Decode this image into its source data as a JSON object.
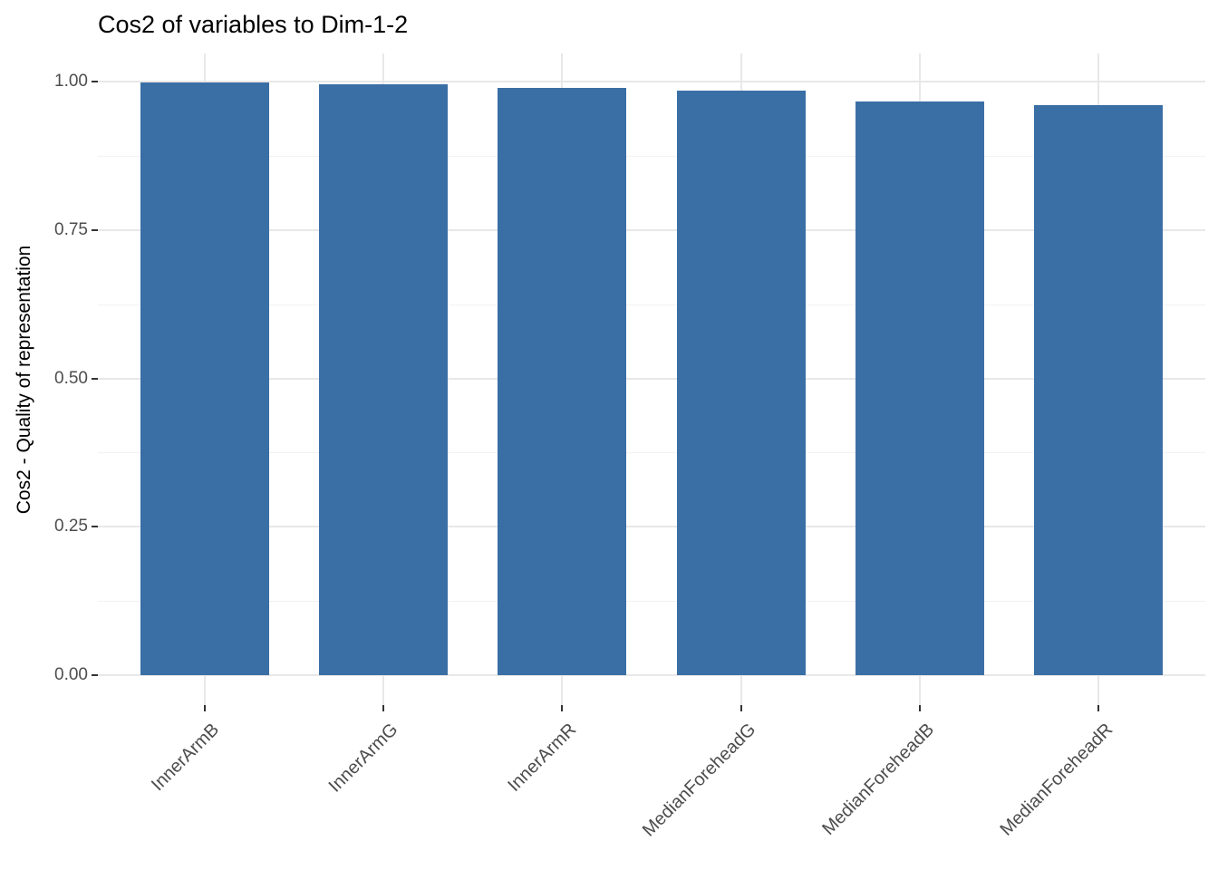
{
  "title": "Cos2 of variables to Dim-1-2",
  "chart_data": {
    "type": "bar",
    "title": "Cos2 of variables to Dim-1-2",
    "xlabel": "",
    "ylabel": "Cos2 - Quality of representation",
    "categories": [
      "InnerArmB",
      "InnerArmG",
      "InnerArmR",
      "MedianForeheadG",
      "MedianForeheadB",
      "MedianForeheadR"
    ],
    "values": [
      0.998,
      0.995,
      0.989,
      0.985,
      0.966,
      0.96
    ],
    "ylim": [
      0,
      1.0
    ],
    "yticks": [
      0.0,
      0.25,
      0.5,
      0.75,
      1.0
    ],
    "ytick_labels": [
      "0.00",
      "0.25",
      "0.50",
      "0.75",
      "1.00"
    ],
    "yminor_ticks": [
      0.125,
      0.375,
      0.625,
      0.875
    ],
    "grid": "major and minor horizontal, major vertical at category centers",
    "legend": "none",
    "bar_orientation": "vertical",
    "x_label_angle_deg": 45,
    "colors": {
      "bar_fill": "#3A6FA6",
      "grid_major": "#E8E8E8",
      "grid_minor": "#F2F2F2",
      "tick_mark": "#333333",
      "tick_text": "#4D4D4D",
      "title_text": "#000000"
    }
  }
}
